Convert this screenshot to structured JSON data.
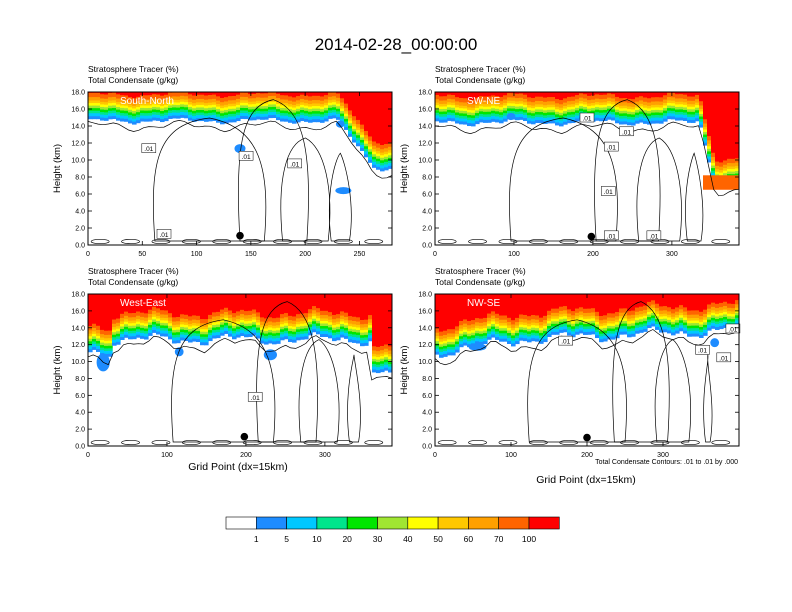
{
  "figure": {
    "title": "2014-02-28_00:00:00",
    "xlabel": "Grid Point (dx=15km)",
    "ylabel": "Height (km)",
    "contour_note": "Total Condensate Contours: .01 to .01 by .000"
  },
  "colorbar": {
    "labels": [
      "1",
      "5",
      "10",
      "20",
      "30",
      "40",
      "50",
      "60",
      "70",
      "100"
    ],
    "colors": [
      "#ffffff",
      "#1e8cff",
      "#00c8ff",
      "#00e58c",
      "#00e600",
      "#a0e632",
      "#ffff00",
      "#ffc800",
      "#ffa000",
      "#ff6400",
      "#ff0000"
    ]
  },
  "chart_data": [
    {
      "type": "heatmap",
      "title": "South-North",
      "subtitle_lines": [
        "Stratosphere Tracer   (%)",
        "Total Condensate   (g/kg)"
      ],
      "xlim": [
        0,
        280
      ],
      "xticks": [
        "0",
        "50",
        "100",
        "150",
        "200",
        "250"
      ],
      "ylim": [
        0,
        18
      ],
      "yticks": [
        "0.0",
        "2.0",
        "4.0",
        "6.0",
        "8.0",
        "10.0",
        "12.0",
        "14.0",
        "16.0",
        "18.0"
      ],
      "contour_labels": [
        ".01",
        ".01",
        ".01",
        ".01"
      ],
      "marker": {
        "x": 140,
        "y": 1.1
      }
    },
    {
      "type": "heatmap",
      "title": "SW-NE",
      "subtitle_lines": [
        "Stratosphere Tracer   (%)",
        "Total Condensate   (g/kg)"
      ],
      "xlim": [
        0,
        385
      ],
      "xticks": [
        "0",
        "100",
        "200",
        "300"
      ],
      "ylim": [
        0,
        18
      ],
      "yticks": [
        "0.0",
        "2.0",
        "4.0",
        "6.0",
        "8.0",
        "10.0",
        "12.0",
        "14.0",
        "16.0",
        "18.0"
      ],
      "contour_labels": [
        ".01",
        ".01",
        ".01",
        ".01",
        ".01",
        ".01"
      ],
      "marker": {
        "x": 198,
        "y": 1.0
      }
    },
    {
      "type": "heatmap",
      "title": "West-East",
      "subtitle_lines": [
        "Stratosphere Tracer   (%)",
        "Total Condensate   (g/kg)"
      ],
      "xlim": [
        0,
        385
      ],
      "xticks": [
        "0",
        "100",
        "200",
        "300"
      ],
      "ylim": [
        0,
        18
      ],
      "yticks": [
        "0.0",
        "2.0",
        "4.0",
        "6.0",
        "8.0",
        "10.0",
        "12.0",
        "14.0",
        "16.0",
        "18.0"
      ],
      "contour_labels": [
        ".01"
      ],
      "marker": {
        "x": 198,
        "y": 1.1
      }
    },
    {
      "type": "heatmap",
      "title": "NW-SE",
      "subtitle_lines": [
        "Stratosphere Tracer   (%)",
        "Total Condensate   (g/kg)"
      ],
      "xlim": [
        0,
        400
      ],
      "xticks": [
        "0",
        "100",
        "200",
        "300"
      ],
      "ylim": [
        0,
        18
      ],
      "yticks": [
        "0.0",
        "2.0",
        "4.0",
        "6.0",
        "8.0",
        "10.0",
        "12.0",
        "14.0",
        "16.0",
        "18.0"
      ],
      "contour_labels": [
        ".01",
        ".01",
        ".01",
        ".01"
      ],
      "marker": {
        "x": 200,
        "y": 1.0
      }
    }
  ]
}
